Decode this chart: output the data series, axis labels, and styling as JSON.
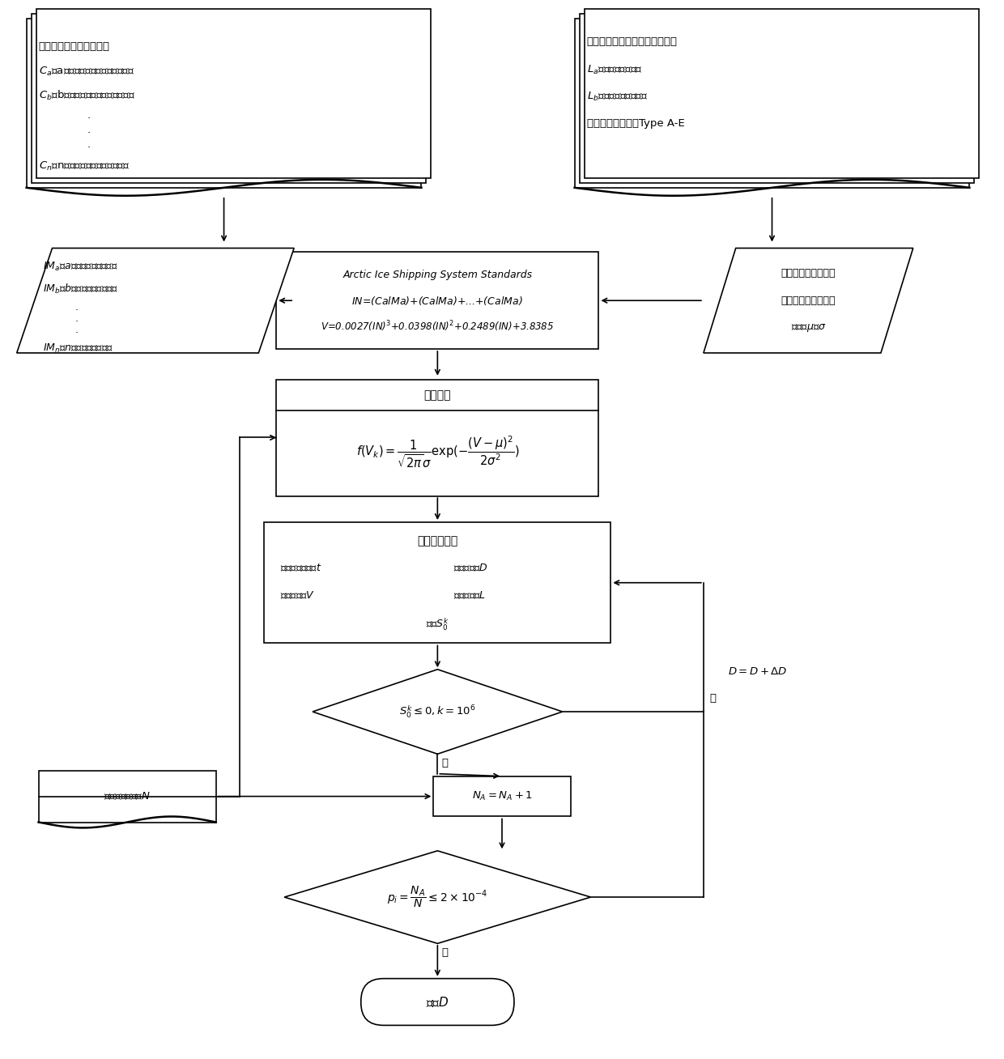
{
  "bg_color": "#ffffff",
  "lc": "#000000",
  "tc": "#000000",
  "lw": 1.2,
  "lb_text_lines": [
    "收集处理海冰环境数据：",
    "$C_a$：a类海冰的密集度（十进制）；",
    "$C_b$：b类海冰的密集度（十进制）；",
    "·",
    "·",
    "·",
    "$C_n$：n类海冰的密集度（十进制）"
  ],
  "rb_text_lines": [
    "收集破冰船和被护航船舶信息：",
    "$L_a$：破冰船的船长；",
    "$L_b$：被护航船的船长；",
    "被护航船的冰级：Type A-E"
  ],
  "lp_text_lines": [
    "$IM_a$：a类海冰的冰乘数值；",
    "$IM_b$：b类海冰的冰乘数值；",
    "·",
    "·",
    "·",
    "$IM_n$：n类海冰的冰乘数值"
  ],
  "cb_text_lines": [
    "Arctic Ice Shipping System Standards",
    "$IN$=($CalMa$)+($CalMa$)+...+($CalMa$)",
    "$V$=0.0027($IN$)$^3$+0.0398($IN$)$^2$+0.2489($IN$)+3.8385"
  ],
  "rp_text_lines": [
    "提取破冰船护航下的",
    "船舶航行速度分布特",
    "征值：$\\mu$和$\\sigma$"
  ],
  "vb_title": "速度分布",
  "vb_formula": "$f(V_k) = \\dfrac{1}{\\sqrt{2\\pi}\\sigma}\\mathrm{exp}(-\\dfrac{(V-\\mu)^2}{2\\sigma^2})$",
  "tb_title": "交通仿真创建",
  "tb_line1_l": "应急决策时间：$t$",
  "tb_line1_r": "初始距离：$D$",
  "tb_line2_l": "船舶速度：$V$",
  "tb_line2_r": "船舶长度：$L$",
  "tb_line3": "计算$S_0^k$",
  "d1_text": "$S_0^k\\leq0,k=10^6$",
  "d1_yes": "是",
  "d1_no": "否",
  "d_update": "$D=D+\\Delta D$",
  "lbx_text": "交通仿真次数：$N$",
  "na_text": "$N_A=N_A+1$",
  "d2_text": "$p_i=\\dfrac{N_A}{N}\\leq2\\times10^{-4}$",
  "d2_yes": "是",
  "out_text": "输出$D$"
}
